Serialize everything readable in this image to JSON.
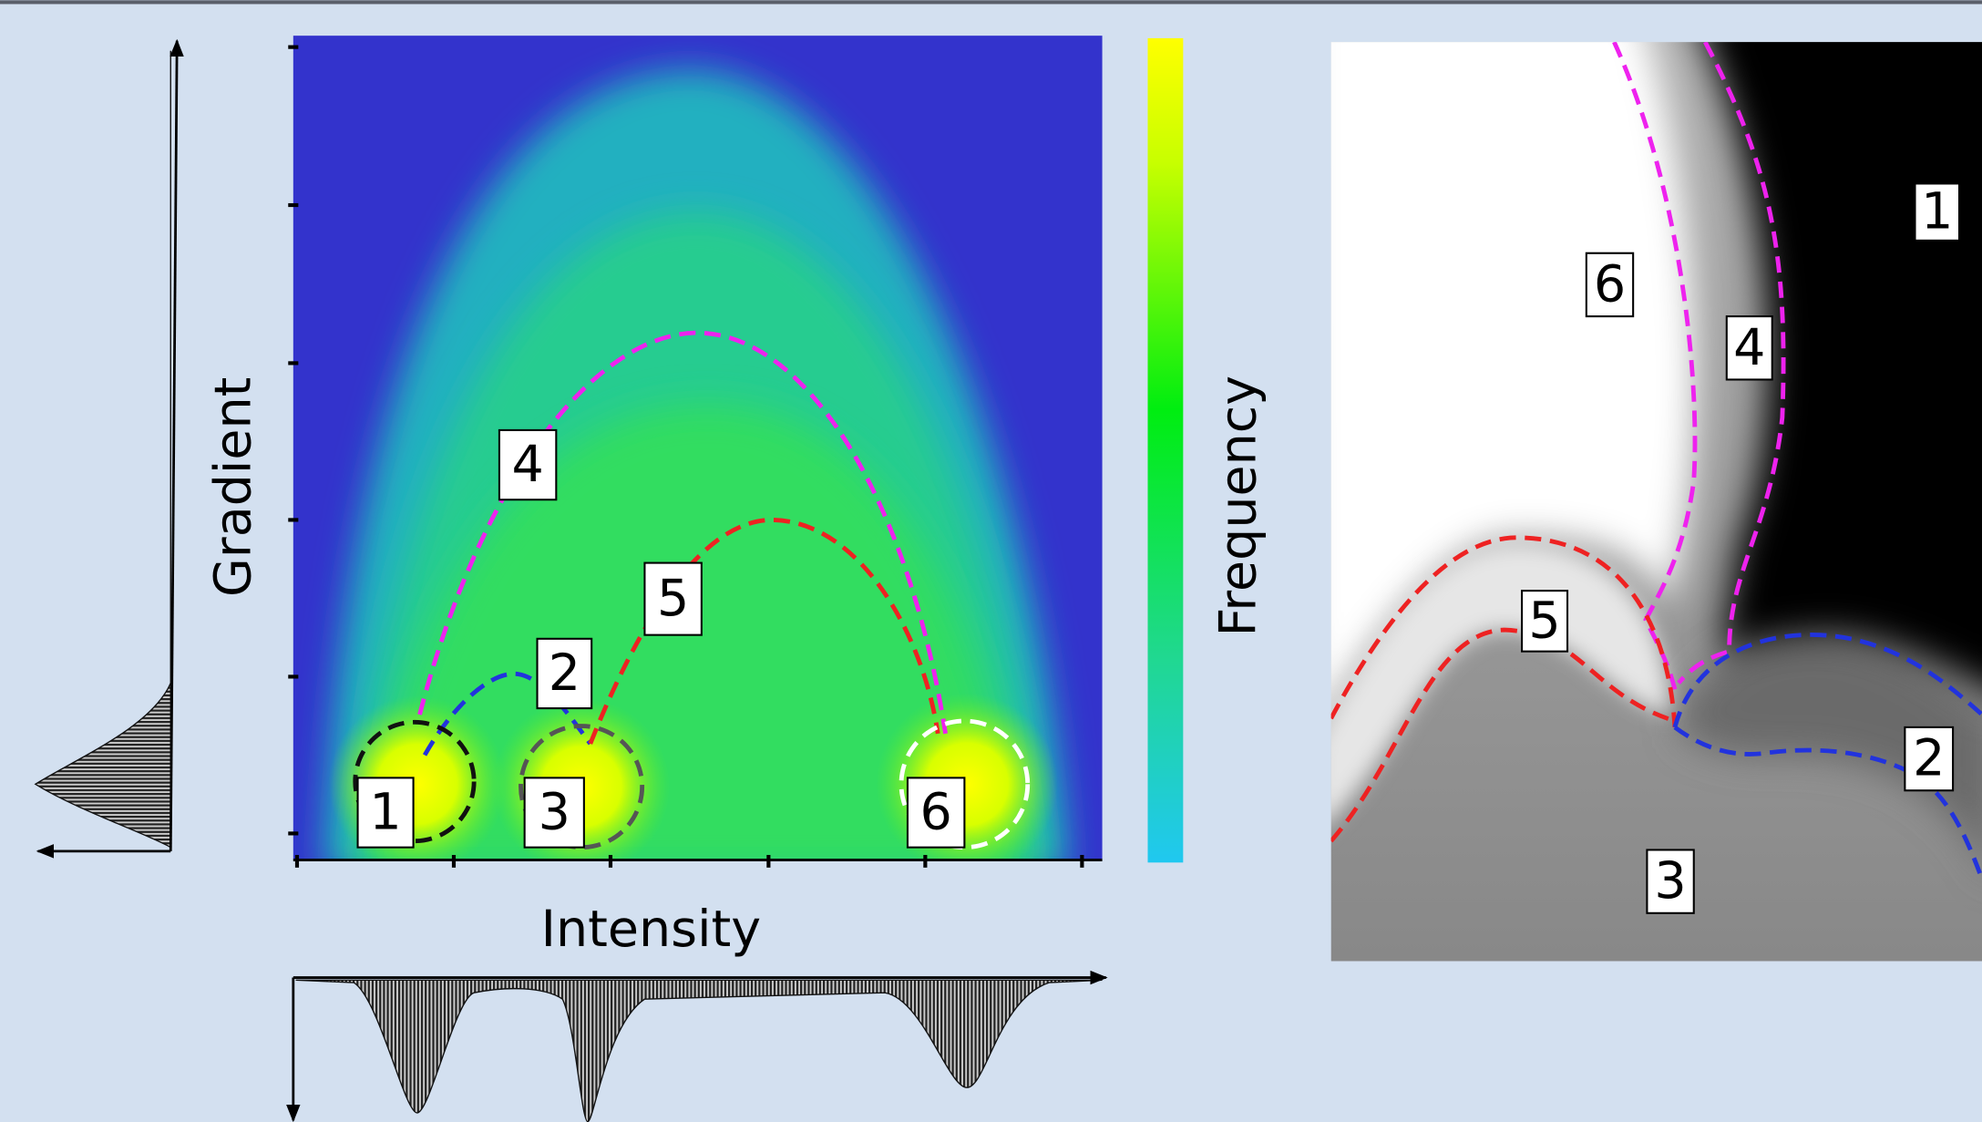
{
  "axes": {
    "y_label": "Gradient",
    "x_label": "Intensity",
    "colorbar_label": "Frequency"
  },
  "histogram_regions": [
    "1",
    "2",
    "3",
    "4",
    "5",
    "6"
  ],
  "image_regions": [
    "1",
    "2",
    "3",
    "4",
    "5",
    "6"
  ]
}
